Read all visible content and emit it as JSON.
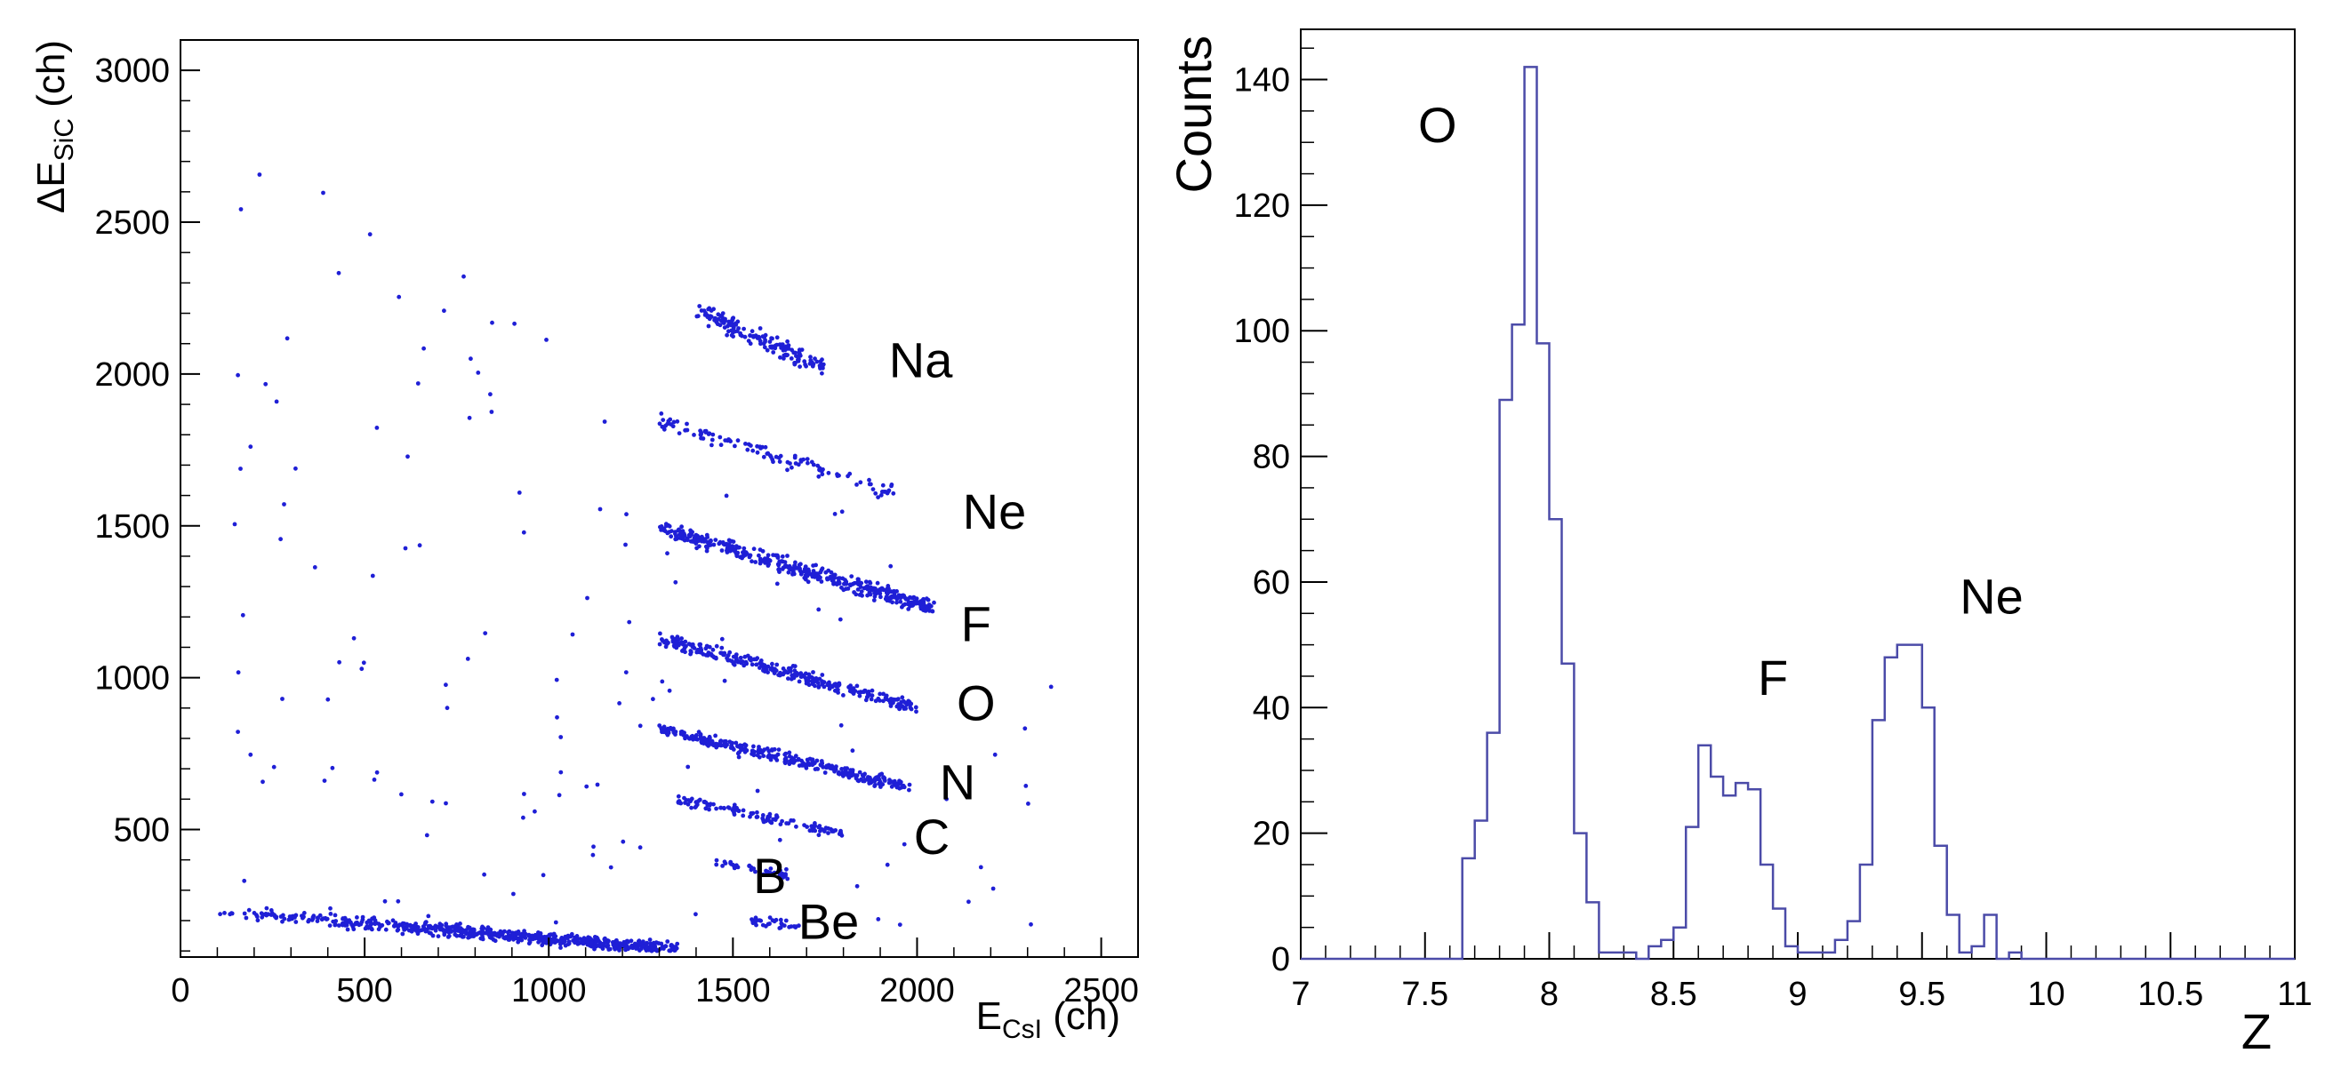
{
  "chart_data": [
    {
      "type": "scatter",
      "panel": "left",
      "title": "",
      "xlabel": {
        "main": "E",
        "sub": "CsI",
        "unit": " (ch)"
      },
      "ylabel": {
        "main": "ΔE",
        "sub": "SiC",
        "unit": " (ch)"
      },
      "xlim": [
        0,
        2600
      ],
      "ylim": [
        80,
        3100
      ],
      "xticks": [
        0,
        500,
        1000,
        1500,
        2000,
        2500
      ],
      "yticks": [
        500,
        1000,
        1500,
        2000,
        2500,
        3000
      ],
      "marker_color": "#1f1fd6",
      "bands": [
        {
          "label": "Na",
          "x": [
            1400,
            1750
          ],
          "y0": 2210,
          "slope": -0.55,
          "n": 170,
          "spread": 45
        },
        {
          "label": "Ne",
          "x": [
            1300,
            1950
          ],
          "y0": 1850,
          "slope": -0.38,
          "n": 110,
          "spread": 40
        },
        {
          "label": "F",
          "x": [
            1300,
            2050
          ],
          "y0": 1490,
          "slope": -0.35,
          "n": 420,
          "spread": 38
        },
        {
          "label": "O",
          "x": [
            1300,
            2000
          ],
          "y0": 1130,
          "slope": -0.33,
          "n": 300,
          "spread": 34
        },
        {
          "label": "N",
          "x": [
            1300,
            1980
          ],
          "y0": 830,
          "slope": -0.28,
          "n": 320,
          "spread": 30
        },
        {
          "label": "C",
          "x": [
            1350,
            1800
          ],
          "y0": 600,
          "slope": -0.25,
          "n": 120,
          "spread": 26
        },
        {
          "label": "B",
          "x": [
            1450,
            1650
          ],
          "y0": 390,
          "slope": -0.2,
          "n": 40,
          "spread": 22
        },
        {
          "label": "Be",
          "x": [
            1550,
            1680
          ],
          "y0": 200,
          "slope": -0.15,
          "n": 30,
          "spread": 18
        },
        {
          "label": "low",
          "x": [
            100,
            1350
          ],
          "y0": 230,
          "slope": -0.1,
          "n": 650,
          "spread": 30
        }
      ],
      "annotations": [
        {
          "text": "Na",
          "x": 2010,
          "y": 1990
        },
        {
          "text": "Ne",
          "x": 2210,
          "y": 1490
        },
        {
          "text": "F",
          "x": 2160,
          "y": 1120
        },
        {
          "text": "O",
          "x": 2160,
          "y": 860
        },
        {
          "text": "N",
          "x": 2110,
          "y": 600
        },
        {
          "text": "C",
          "x": 2040,
          "y": 420
        },
        {
          "text": "B",
          "x": 1600,
          "y": 290
        },
        {
          "text": "Be",
          "x": 1760,
          "y": 140
        }
      ]
    },
    {
      "type": "histogram",
      "panel": "right",
      "title": "",
      "xlabel": "Z",
      "ylabel": "Counts",
      "xlim": [
        7,
        11
      ],
      "ylim": [
        0,
        148
      ],
      "xticks": [
        7,
        7.5,
        8,
        8.5,
        9,
        9.5,
        10,
        10.5,
        11
      ],
      "xtick_labels": [
        "7",
        "7.5",
        "8",
        "8.5",
        "9",
        "9.5",
        "10",
        "10.5",
        "11"
      ],
      "yticks": [
        0,
        20,
        40,
        60,
        80,
        100,
        120,
        140
      ],
      "bin_width": 0.05,
      "bin_start": 7.0,
      "counts": [
        0,
        0,
        0,
        0,
        0,
        0,
        0,
        0,
        0,
        0,
        0,
        0,
        0,
        16,
        22,
        36,
        89,
        101,
        142,
        98,
        70,
        47,
        20,
        9,
        1,
        1,
        1,
        0,
        2,
        3,
        5,
        21,
        34,
        29,
        26,
        28,
        27,
        15,
        8,
        2,
        1,
        1,
        1,
        3,
        6,
        15,
        38,
        48,
        50,
        50,
        40,
        18,
        7,
        1,
        2,
        7,
        0,
        1,
        0,
        0,
        0,
        0,
        0,
        0,
        0,
        0,
        0,
        0,
        0,
        0,
        0,
        0,
        0,
        0,
        0,
        0,
        0,
        0,
        0,
        0
      ],
      "line_color": "#4b4ba8",
      "annotations": [
        {
          "text": "O",
          "x": 7.55,
          "y": 130
        },
        {
          "text": "F",
          "x": 8.9,
          "y": 42
        },
        {
          "text": "Ne",
          "x": 9.78,
          "y": 55
        }
      ]
    }
  ]
}
